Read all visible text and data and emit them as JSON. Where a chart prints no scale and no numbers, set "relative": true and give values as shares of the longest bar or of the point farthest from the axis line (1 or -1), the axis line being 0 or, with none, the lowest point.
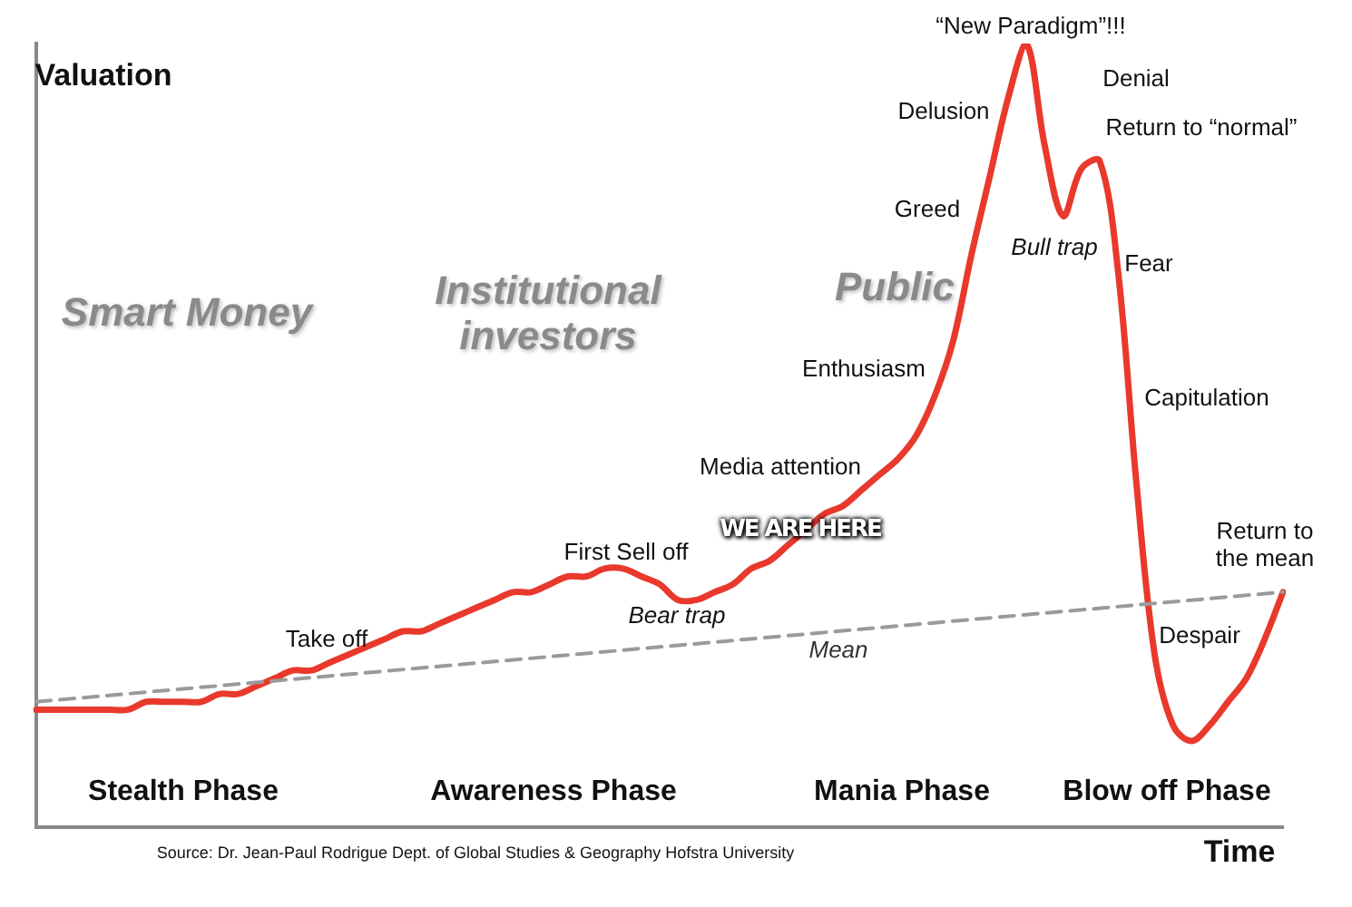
{
  "chart_data": {
    "type": "line",
    "relative": true,
    "xlabel": "Time",
    "ylabel": "Valuation",
    "marker": "none",
    "categories": [
      null,
      null,
      null,
      null,
      null,
      null,
      null,
      null,
      null,
      null,
      null,
      null,
      null,
      null,
      null,
      null,
      null,
      null,
      null,
      null,
      null,
      null,
      null,
      null,
      null,
      null,
      null,
      null,
      null,
      null,
      null,
      null,
      null,
      null,
      null,
      null,
      null,
      null,
      null,
      null,
      null,
      null,
      null,
      null,
      null,
      null,
      null,
      null,
      null,
      null,
      null,
      null,
      null,
      null,
      null,
      null,
      null,
      null,
      null,
      null,
      null,
      null,
      null,
      null,
      null,
      null,
      null,
      null,
      null
    ],
    "series": [
      {
        "color": "#e8392c",
        "line_style": "solid",
        "values": [
          0.15,
          0.15,
          0.15,
          0.15,
          0.15,
          0.15,
          0.16,
          0.16,
          0.16,
          0.16,
          0.17,
          0.17,
          0.18,
          0.19,
          0.2,
          0.2,
          0.21,
          0.22,
          0.23,
          0.24,
          0.25,
          0.25,
          0.26,
          0.27,
          0.28,
          0.29,
          0.3,
          0.3,
          0.31,
          0.32,
          0.32,
          0.33,
          0.33,
          0.32,
          0.31,
          0.29,
          0.29,
          0.3,
          0.31,
          0.33,
          0.34,
          0.36,
          0.38,
          0.4,
          0.41,
          0.43,
          0.45,
          0.47,
          0.5,
          0.55,
          0.62,
          0.73,
          0.83,
          0.93,
          1,
          0.87,
          0.78,
          0.84,
          0.85,
          0.71,
          0.44,
          0.22,
          0.13,
          0.11,
          0.13,
          0.16,
          0.19,
          0.24,
          0.3
        ]
      },
      {
        "name": "Mean",
        "color": "#9a9a9a",
        "line_style": "dashed",
        "values": [
          0.16,
          null,
          null,
          null,
          null,
          null,
          null,
          null,
          null,
          null,
          null,
          null,
          null,
          null,
          null,
          null,
          null,
          null,
          null,
          null,
          null,
          null,
          null,
          null,
          null,
          null,
          null,
          null,
          null,
          null,
          null,
          null,
          null,
          null,
          null,
          null,
          null,
          null,
          null,
          null,
          null,
          null,
          null,
          null,
          null,
          null,
          null,
          null,
          null,
          null,
          null,
          null,
          null,
          null,
          null,
          null,
          null,
          null,
          null,
          null,
          null,
          null,
          null,
          null,
          null,
          null,
          null,
          null,
          0.3
        ]
      }
    ],
    "annotations": [
      "Smart Money",
      "Institutional investors",
      "Public",
      "Take off",
      "First Sell off",
      "Bear trap",
      "Media attention",
      "WE ARE HERE",
      "Enthusiasm",
      "Greed",
      "Delusion",
      "“New Paradigm”!!!",
      "Denial",
      "Return to “normal”",
      "Bull trap",
      "Fear",
      "Capitulation",
      "Return to the mean",
      "Despair",
      "Stealth Phase",
      "Awareness Phase",
      "Mania Phase",
      "Blow off Phase",
      "Source: Dr. Jean-Paul Rodrigue Dept. of Global Studies & Geography Hofstra University"
    ]
  }
}
